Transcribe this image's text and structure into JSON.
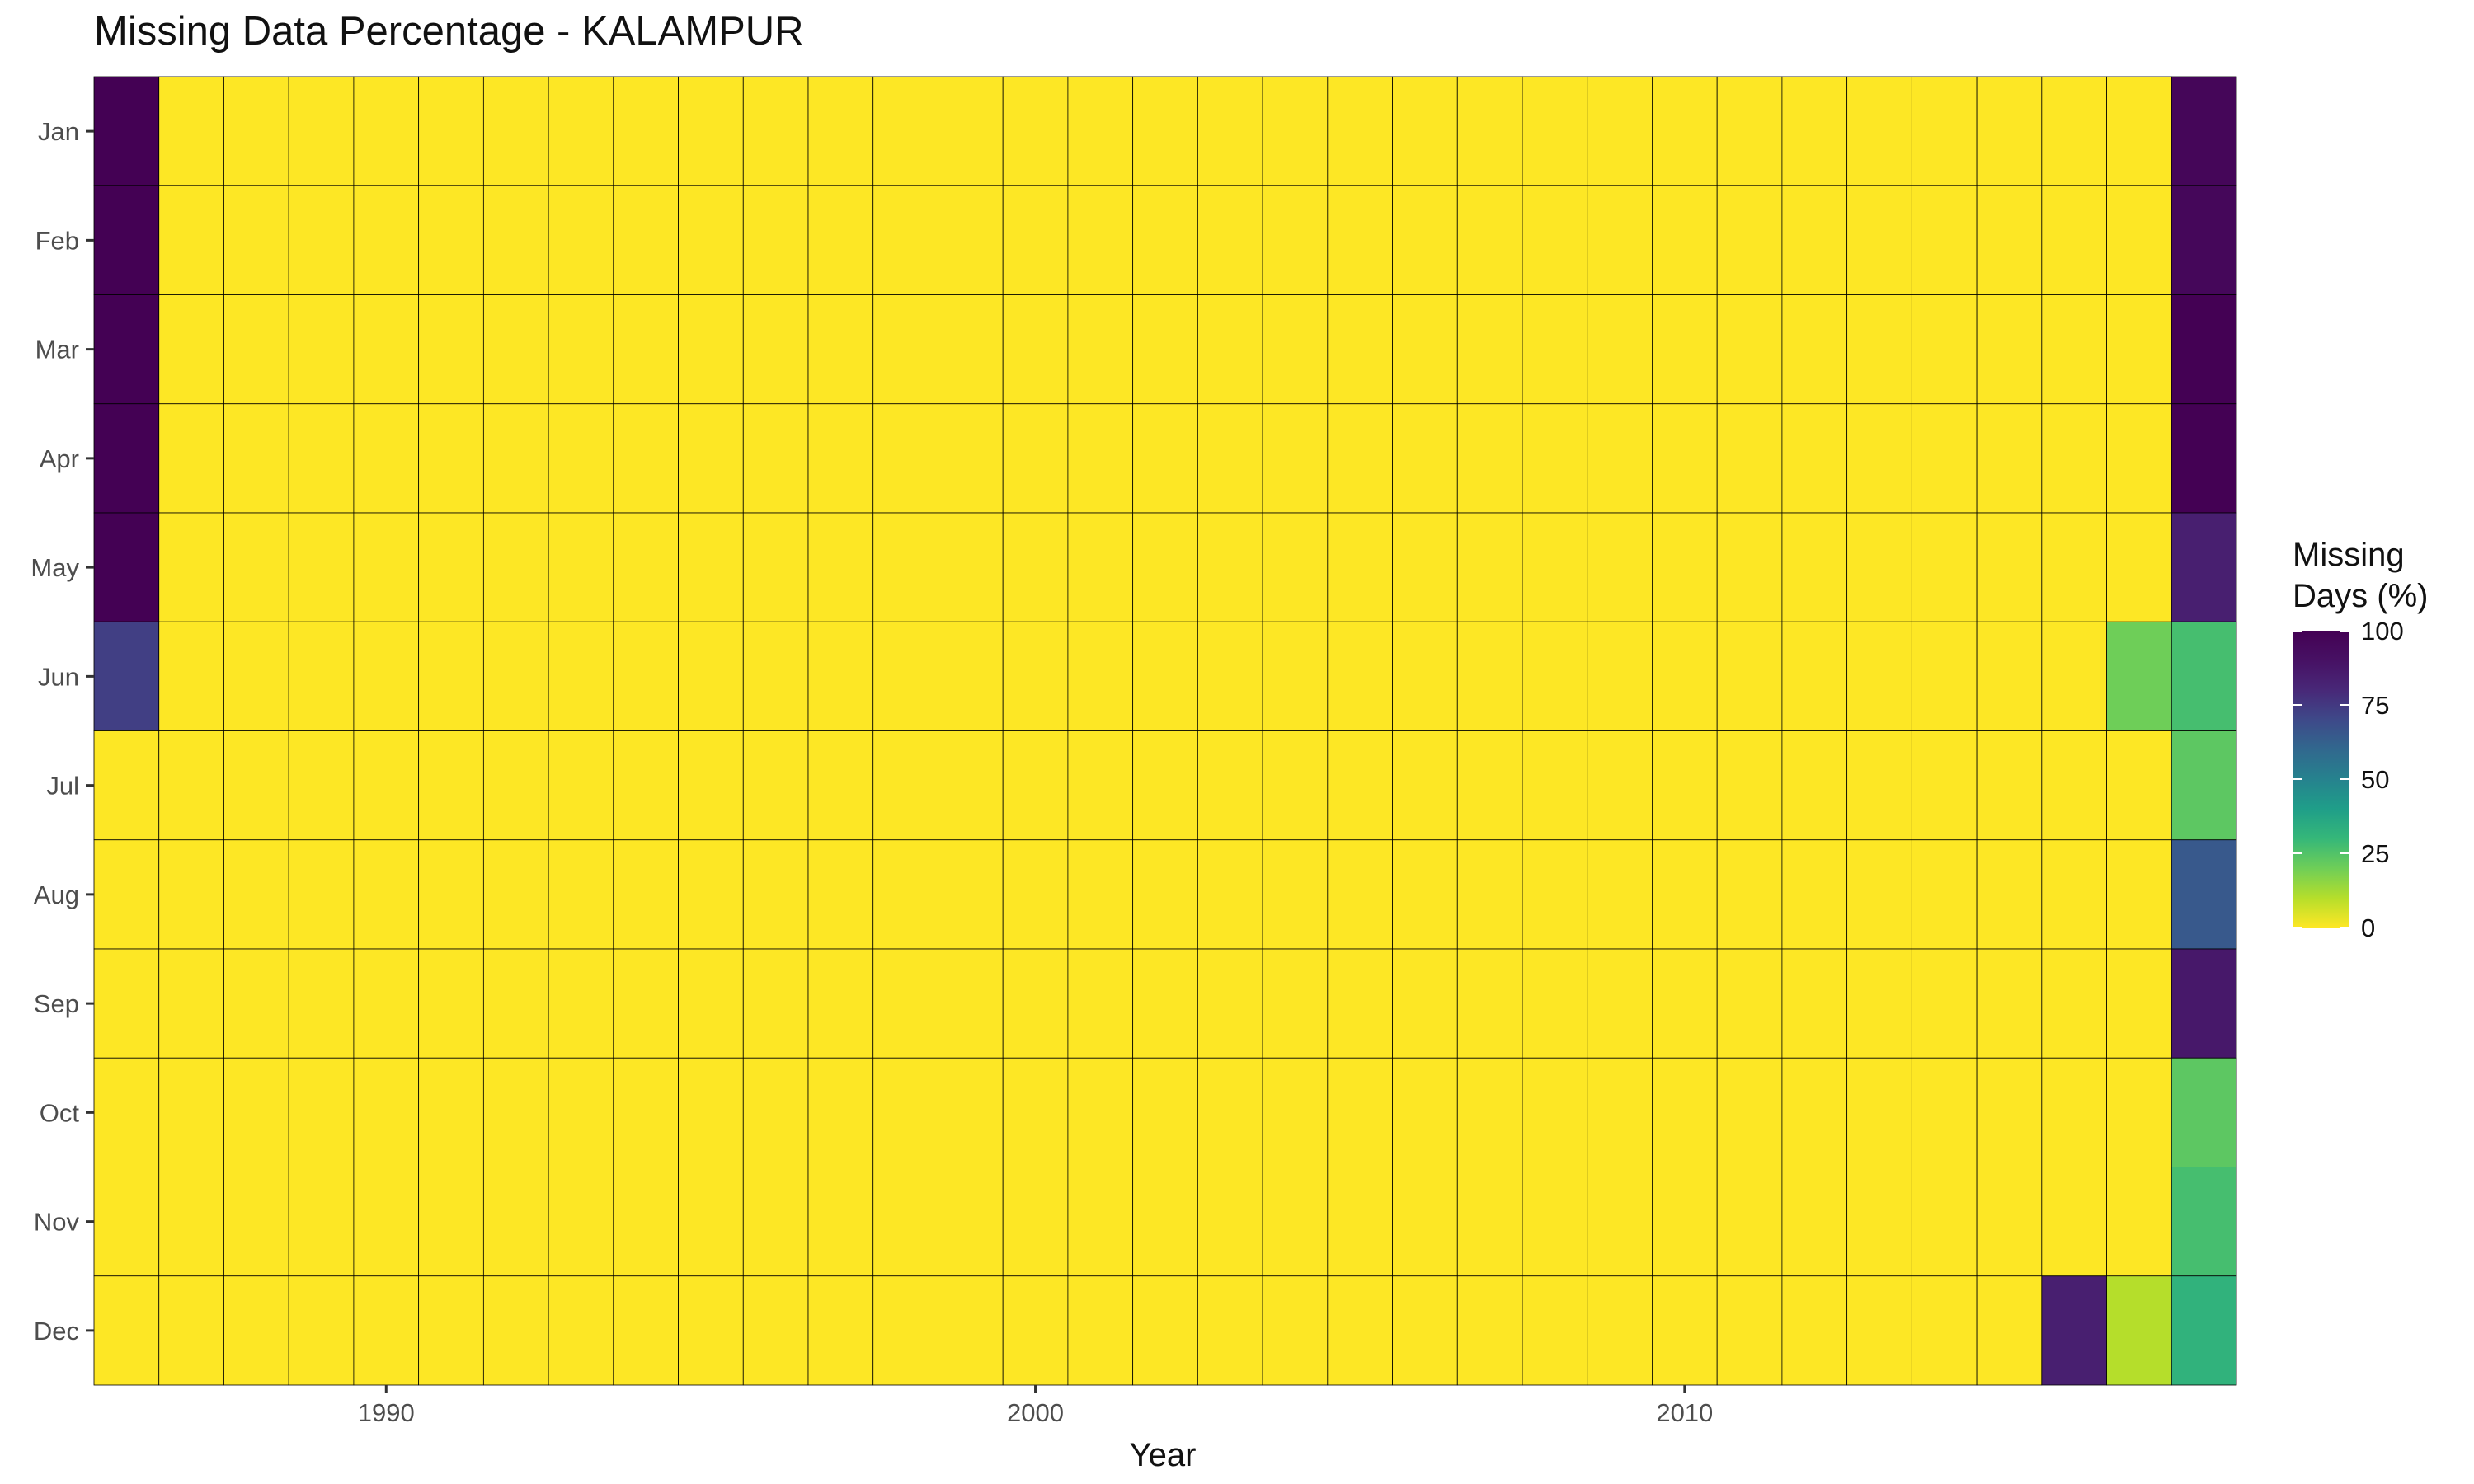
{
  "chart_data": {
    "type": "heatmap",
    "title": "Missing Data Percentage - KALAMPUR",
    "xlabel": "Year",
    "ylabel": "",
    "x_tick_labels": [
      "1990",
      "2000",
      "2010"
    ],
    "years": [
      1986,
      1987,
      1988,
      1989,
      1990,
      1991,
      1992,
      1993,
      1994,
      1995,
      1996,
      1997,
      1998,
      1999,
      2000,
      2001,
      2002,
      2003,
      2004,
      2005,
      2006,
      2007,
      2008,
      2009,
      2010,
      2011,
      2012,
      2013,
      2014,
      2015,
      2016,
      2017,
      2018
    ],
    "months": [
      "Jan",
      "Feb",
      "Mar",
      "Apr",
      "May",
      "Jun",
      "Jul",
      "Aug",
      "Sep",
      "Oct",
      "Nov",
      "Dec"
    ],
    "legend": {
      "title_line1": "Missing",
      "title_line2": "Days (%)",
      "ticks": [
        "100",
        "75",
        "50",
        "25",
        "0"
      ],
      "range": [
        0,
        100
      ],
      "placement": "right"
    },
    "colorscale": "viridis (reversed: 0 = yellow, 100 = dark purple)",
    "grid": false,
    "default_value": 0,
    "nonzero_cells": [
      {
        "year": 1986,
        "month": "Jan",
        "value": 100
      },
      {
        "year": 1986,
        "month": "Feb",
        "value": 100
      },
      {
        "year": 1986,
        "month": "Mar",
        "value": 100
      },
      {
        "year": 1986,
        "month": "Apr",
        "value": 100
      },
      {
        "year": 1986,
        "month": "May",
        "value": 100
      },
      {
        "year": 1986,
        "month": "Jun",
        "value": 73
      },
      {
        "year": 2016,
        "month": "Dec",
        "value": 84
      },
      {
        "year": 2017,
        "month": "Jun",
        "value": 20
      },
      {
        "year": 2017,
        "month": "Dec",
        "value": 10
      },
      {
        "year": 2018,
        "month": "Jan",
        "value": 97
      },
      {
        "year": 2018,
        "month": "Feb",
        "value": 96
      },
      {
        "year": 2018,
        "month": "Mar",
        "value": 100
      },
      {
        "year": 2018,
        "month": "Apr",
        "value": 100
      },
      {
        "year": 2018,
        "month": "May",
        "value": 84
      },
      {
        "year": 2018,
        "month": "Jun",
        "value": 27
      },
      {
        "year": 2018,
        "month": "Jul",
        "value": 23
      },
      {
        "year": 2018,
        "month": "Aug",
        "value": 65
      },
      {
        "year": 2018,
        "month": "Sep",
        "value": 87
      },
      {
        "year": 2018,
        "month": "Oct",
        "value": 23
      },
      {
        "year": 2018,
        "month": "Nov",
        "value": 27
      },
      {
        "year": 2018,
        "month": "Dec",
        "value": 32
      }
    ]
  }
}
